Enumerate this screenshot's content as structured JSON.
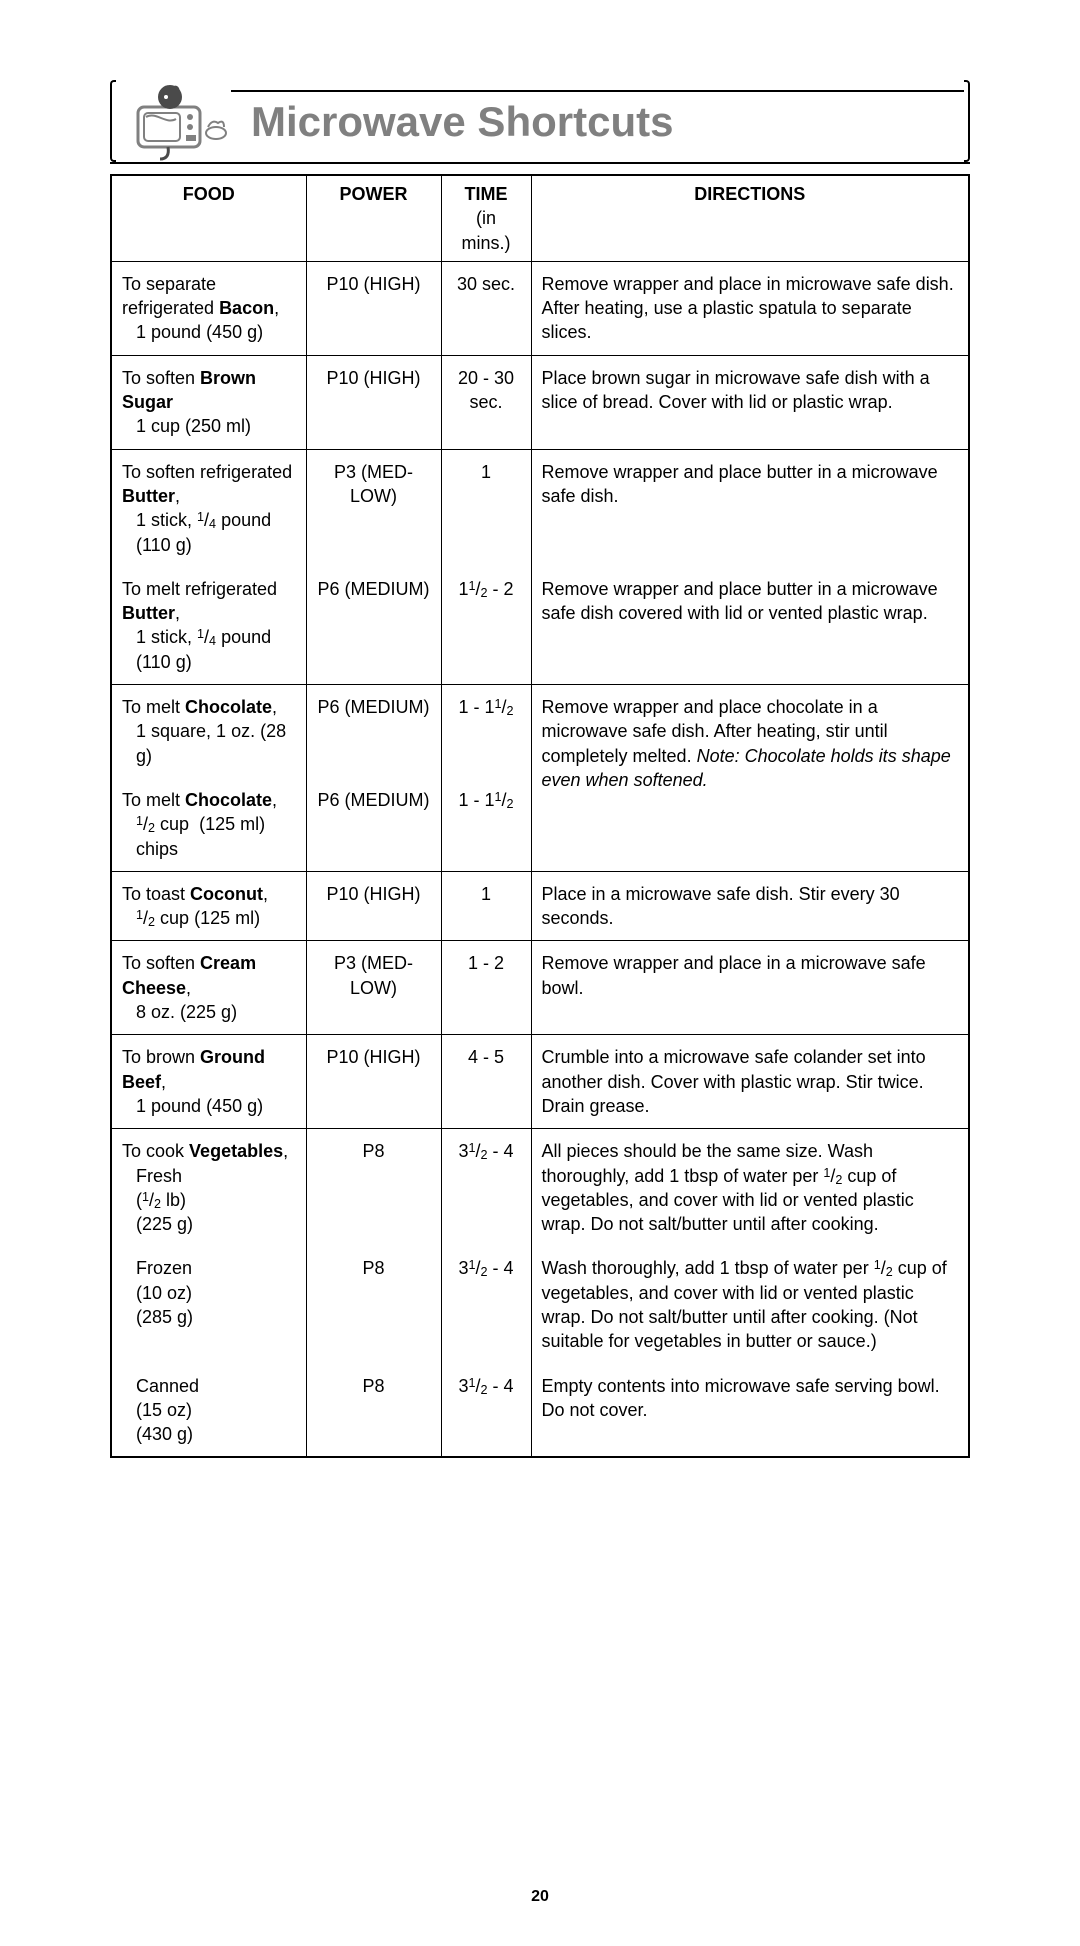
{
  "title": "Microwave Shortcuts",
  "page_number": "20",
  "headers": {
    "food": "FOOD",
    "power": "POWER",
    "time": "TIME",
    "time_sub": "(in mins.)",
    "directions": "DIRECTIONS"
  },
  "rows": [
    {
      "sep": true,
      "food_pre": "To separate refrigerated ",
      "food_bold": "Bacon",
      "food_post": ",",
      "food_line2": "1 pound (450 g)",
      "power": "P10 (HIGH)",
      "time": "30 sec.",
      "directions": "Remove wrapper and place in microwave safe dish. After heating, use a plastic spatula to separate slices."
    },
    {
      "sep": true,
      "food_pre": "To soften ",
      "food_bold": "Brown Sugar",
      "food_post": "",
      "food_line2": "1 cup (250 ml)",
      "power": "P10 (HIGH)",
      "time": "20 - 30 sec.",
      "directions": "Place brown sugar in microwave safe dish with a slice of bread. Cover with lid or plastic wrap."
    },
    {
      "sep": true,
      "food_pre": "To soften refrigerated ",
      "food_bold": "Butter",
      "food_post": ",",
      "food_line2_html": "1 stick, <span class='sup'>1</span>/<span class='sub'>4</span> pound (110 g)",
      "power": "P3 (MED-LOW)",
      "time": "1",
      "directions": "Remove wrapper and place butter in a microwave safe dish."
    },
    {
      "sep": false,
      "food_pre": "To melt refrigerated ",
      "food_bold": "Butter",
      "food_post": ",",
      "food_line2_html": "1 stick, <span class='sup'>1</span>/<span class='sub'>4</span> pound (110 g)",
      "power": "P6 (MEDIUM)",
      "time_html": "1<span class='sup'>1</span>/<span class='sub'>2</span> - 2",
      "directions": "Remove wrapper and place butter in a microwave safe dish covered with lid or vented plastic wrap."
    },
    {
      "sep": true,
      "food_pre": "To melt ",
      "food_bold": "Chocolate",
      "food_post": ",",
      "food_line2": "1 square, 1 oz. (28 g)",
      "power": "P6 (MEDIUM)",
      "time_html": "1 - 1<span class='sup'>1</span>/<span class='sub'>2</span>",
      "dir_rowspan": 2,
      "directions_html": "Remove wrapper and place chocolate in a microwave safe dish. After heating, stir until completely melted. <em class='note'>Note: Chocolate holds its shape even when softened.</em>"
    },
    {
      "sep": false,
      "sub": true,
      "food_pre": "To melt ",
      "food_bold": "Chocolate",
      "food_post": ",",
      "food_line2_html": "<span class='sup'>1</span>/<span class='sub'>2</span> cup&nbsp;&nbsp;(125 ml) chips",
      "power": "P6 (MEDIUM)",
      "time_html": "1 - 1<span class='sup'>1</span>/<span class='sub'>2</span>"
    },
    {
      "sep": true,
      "food_pre": "To toast ",
      "food_bold": "Coconut",
      "food_post": ",",
      "food_line2_html": "<span class='sup'>1</span>/<span class='sub'>2</span> cup (125 ml)",
      "power": "P10 (HIGH)",
      "time": "1",
      "directions": "Place in a microwave safe dish. Stir every 30 seconds."
    },
    {
      "sep": true,
      "food_pre": "To soften ",
      "food_bold": "Cream Cheese",
      "food_post": ",",
      "food_line2": "8 oz. (225 g)",
      "power": "P3 (MED-LOW)",
      "time": "1 - 2",
      "directions": "Remove wrapper and place in a microwave safe bowl."
    },
    {
      "sep": true,
      "food_pre": "To brown ",
      "food_bold": "Ground Beef",
      "food_post": ",",
      "food_line2": "1 pound (450 g)",
      "power": "P10 (HIGH)",
      "time": "4 - 5",
      "directions": "Crumble into a microwave safe colander set into another dish. Cover with plastic wrap. Stir twice. Drain grease."
    },
    {
      "sep": true,
      "food_pre": "To cook ",
      "food_bold": "Vegetables",
      "food_post": ",",
      "food_extra_html": "<span class='indent'>Fresh</span><span class='indent'>(<span class='sup'>1</span>/<span class='sub'>2</span> lb)</span><span class='indent'>(225 g)</span>",
      "power": "P8",
      "time_html": "3<span class='sup'>1</span>/<span class='sub'>2</span> - 4",
      "directions_html": "All pieces should be the same size. Wash thoroughly, add 1 tbsp of water per <span class='sup'>1</span>/<span class='sub'>2</span> cup of vegetables, and cover with lid or vented plastic wrap. Do not salt/butter until after cooking."
    },
    {
      "sep": false,
      "food_extra_only_html": "<span class='indent'>Frozen</span><span class='indent'>(10 oz)</span><span class='indent'>(285 g)</span>",
      "power": "P8",
      "time_html": "3<span class='sup'>1</span>/<span class='sub'>2</span> - 4",
      "directions_html": "Wash thoroughly, add 1 tbsp of water per <span class='sup'>1</span>/<span class='sub'>2</span> cup of vegetables, and cover with lid or vented plastic wrap. Do not salt/butter until after cooking. (Not suitable for vegetables in butter or sauce.)"
    },
    {
      "sep": false,
      "food_extra_only_html": "<span class='indent'>Canned</span><span class='indent'>(15 oz)</span><span class='indent'>(430 g)</span>",
      "power": "P8",
      "time_html": "3<span class='sup'>1</span>/<span class='sub'>2</span> - 4",
      "directions": "Empty contents into microwave safe serving bowl. Do not cover."
    }
  ]
}
